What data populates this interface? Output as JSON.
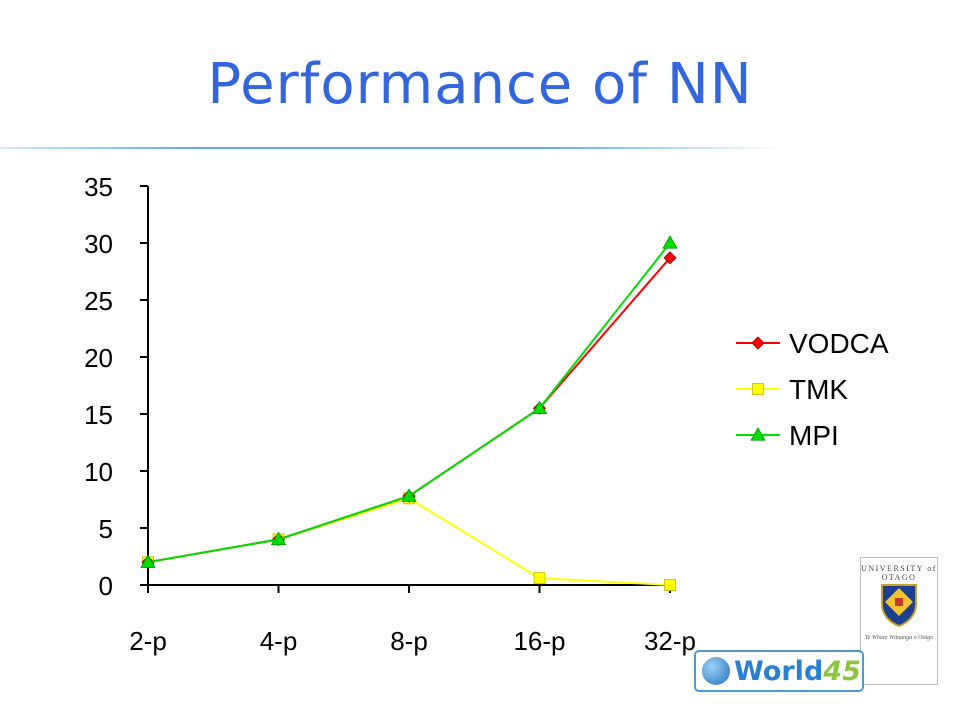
{
  "slide": {
    "title": "Performance of NN"
  },
  "logo": {
    "university": "UNIVERSITY of OTAGO",
    "motto": "Te Whare Wānanga o Otāgo",
    "badge_word": "World",
    "badge_number": "45"
  },
  "colors": {
    "title": "#3366dd",
    "VODCA": "#ff0000",
    "TMK": "#ffff00",
    "MPI": "#00dd00"
  },
  "chart_data": {
    "type": "line",
    "title": "",
    "xlabel": "",
    "ylabel": "",
    "categories": [
      "2-p",
      "4-p",
      "8-p",
      "16-p",
      "32-p"
    ],
    "ylim": [
      0,
      35
    ],
    "yticks": [
      0,
      5,
      10,
      15,
      20,
      25,
      30,
      35
    ],
    "grid": false,
    "legend_position": "right",
    "series": [
      {
        "name": "VODCA",
        "values": [
          2,
          4,
          7.8,
          15.5,
          28.7
        ],
        "color": "#ff0000",
        "marker": "diamond"
      },
      {
        "name": "TMK",
        "values": [
          2,
          4,
          7.6,
          0.6,
          0.0
        ],
        "color": "#ffff00",
        "marker": "square"
      },
      {
        "name": "MPI",
        "values": [
          2,
          4,
          7.8,
          15.5,
          30
        ],
        "color": "#00dd00",
        "marker": "triangle"
      }
    ]
  }
}
